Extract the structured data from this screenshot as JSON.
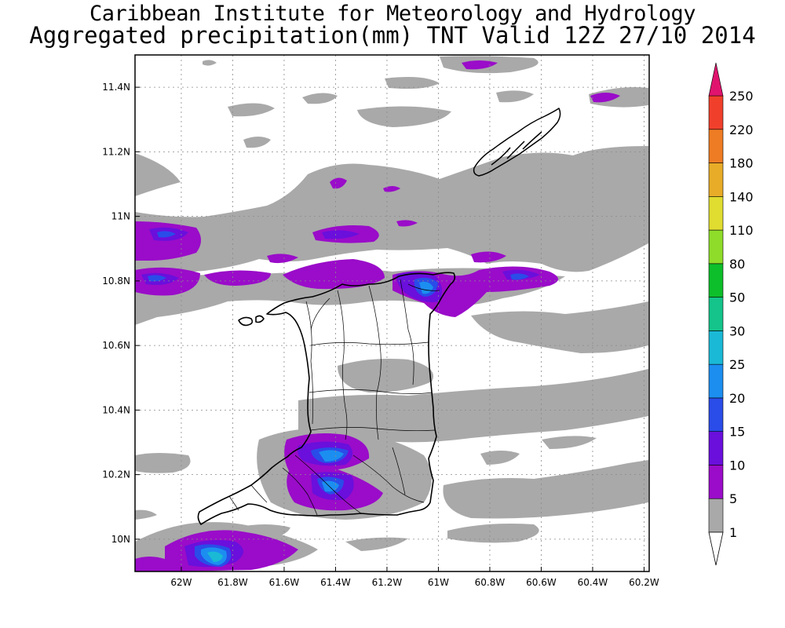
{
  "title_line1": "Caribbean Institute for Meteorology and Hydrology",
  "title_line2": "Aggregated precipitation(mm) TNT Valid 12Z 27/10 2014",
  "map": {
    "lon_range": [
      -62.18,
      -60.18
    ],
    "lat_range": [
      9.9,
      11.5
    ],
    "lat_ticks": [
      {
        "v": 10.0,
        "label": "10N"
      },
      {
        "v": 10.2,
        "label": "10.2N"
      },
      {
        "v": 10.4,
        "label": "10.4N"
      },
      {
        "v": 10.6,
        "label": "10.6N"
      },
      {
        "v": 10.8,
        "label": "10.8N"
      },
      {
        "v": 11.0,
        "label": "11N"
      },
      {
        "v": 11.2,
        "label": "11.2N"
      },
      {
        "v": 11.4,
        "label": "11.4N"
      }
    ],
    "lon_ticks": [
      {
        "v": -62.0,
        "label": "62W"
      },
      {
        "v": -61.8,
        "label": "61.8W"
      },
      {
        "v": -61.6,
        "label": "61.6W"
      },
      {
        "v": -61.4,
        "label": "61.4W"
      },
      {
        "v": -61.2,
        "label": "61.2W"
      },
      {
        "v": -61.0,
        "label": "61W"
      },
      {
        "v": -60.8,
        "label": "60.8W"
      },
      {
        "v": -60.6,
        "label": "60.6W"
      },
      {
        "v": -60.4,
        "label": "60.4W"
      },
      {
        "v": -60.2,
        "label": "60.2W"
      }
    ],
    "grid": true
  },
  "legend": {
    "units": "mm",
    "levels": [
      {
        "label": "1",
        "color": "#a9a9a9"
      },
      {
        "label": "5",
        "color": "#9a0cc9"
      },
      {
        "label": "10",
        "color": "#6a0fdc"
      },
      {
        "label": "15",
        "color": "#2a4ce8"
      },
      {
        "label": "20",
        "color": "#1c8ef0"
      },
      {
        "label": "25",
        "color": "#1ab9d6"
      },
      {
        "label": "30",
        "color": "#14c48a"
      },
      {
        "label": "50",
        "color": "#0dbf2a"
      },
      {
        "label": "80",
        "color": "#8fdc2a"
      },
      {
        "label": "110",
        "color": "#e0dc30"
      },
      {
        "label": "140",
        "color": "#e8ac28"
      },
      {
        "label": "180",
        "color": "#ee7c24"
      },
      {
        "label": "220",
        "color": "#f0402c"
      },
      {
        "label": "250",
        "color": "#e0146e"
      }
    ],
    "top_arrow_color": "#e0146e",
    "bottom_arrow_color": "#ffffff"
  }
}
